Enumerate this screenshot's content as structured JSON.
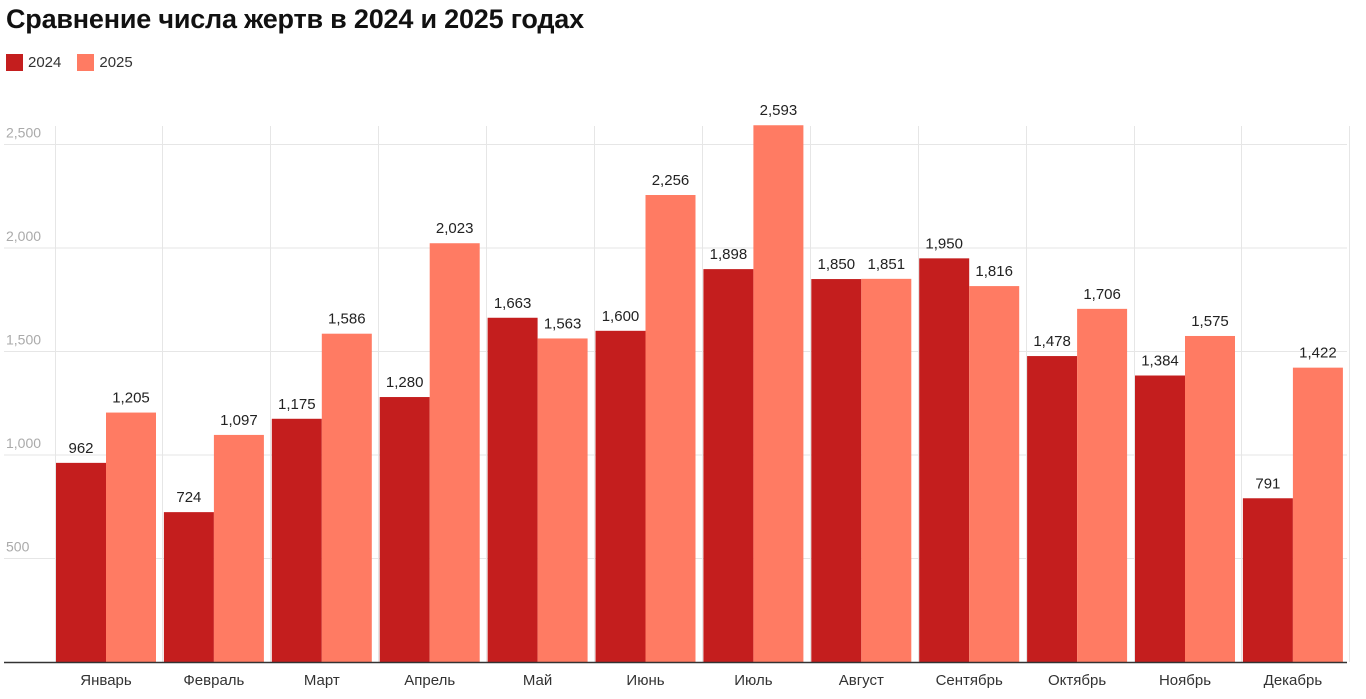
{
  "chart_data": {
    "type": "bar",
    "title": "Сравнение числа жертв в 2024 и 2025 годах",
    "xlabel": "",
    "ylabel": "",
    "ylim": [
      0,
      2600
    ],
    "yticks": [
      500,
      1000,
      1500,
      2000,
      2500
    ],
    "ytick_labels": [
      "500",
      "1,000",
      "1,500",
      "2,000",
      "2,500"
    ],
    "grid": true,
    "legend_position": "top-left",
    "categories": [
      "Январь",
      "Февраль",
      "Март",
      "Апрель",
      "Май",
      "Июнь",
      "Июль",
      "Август",
      "Сентябрь",
      "Октябрь",
      "Ноябрь",
      "Декабрь"
    ],
    "series": [
      {
        "name": "2024",
        "color": "#c41e1e",
        "values": [
          962,
          724,
          1175,
          1280,
          1663,
          1600,
          1898,
          1850,
          1950,
          1478,
          1384,
          791
        ],
        "labels": [
          "962",
          "724",
          "1,175",
          "1,280",
          "1,663",
          "1,600",
          "1,898",
          "1,850",
          "1,950",
          "1,478",
          "1,384",
          "791"
        ]
      },
      {
        "name": "2025",
        "color": "#ff7b63",
        "values": [
          1205,
          1097,
          1586,
          2023,
          1563,
          2256,
          2593,
          1851,
          1816,
          1706,
          1575,
          1422
        ],
        "labels": [
          "1,205",
          "1,097",
          "1,586",
          "2,023",
          "1,563",
          "2,256",
          "2,593",
          "1,851",
          "1,816",
          "1,706",
          "1,575",
          "1,422"
        ]
      }
    ]
  }
}
